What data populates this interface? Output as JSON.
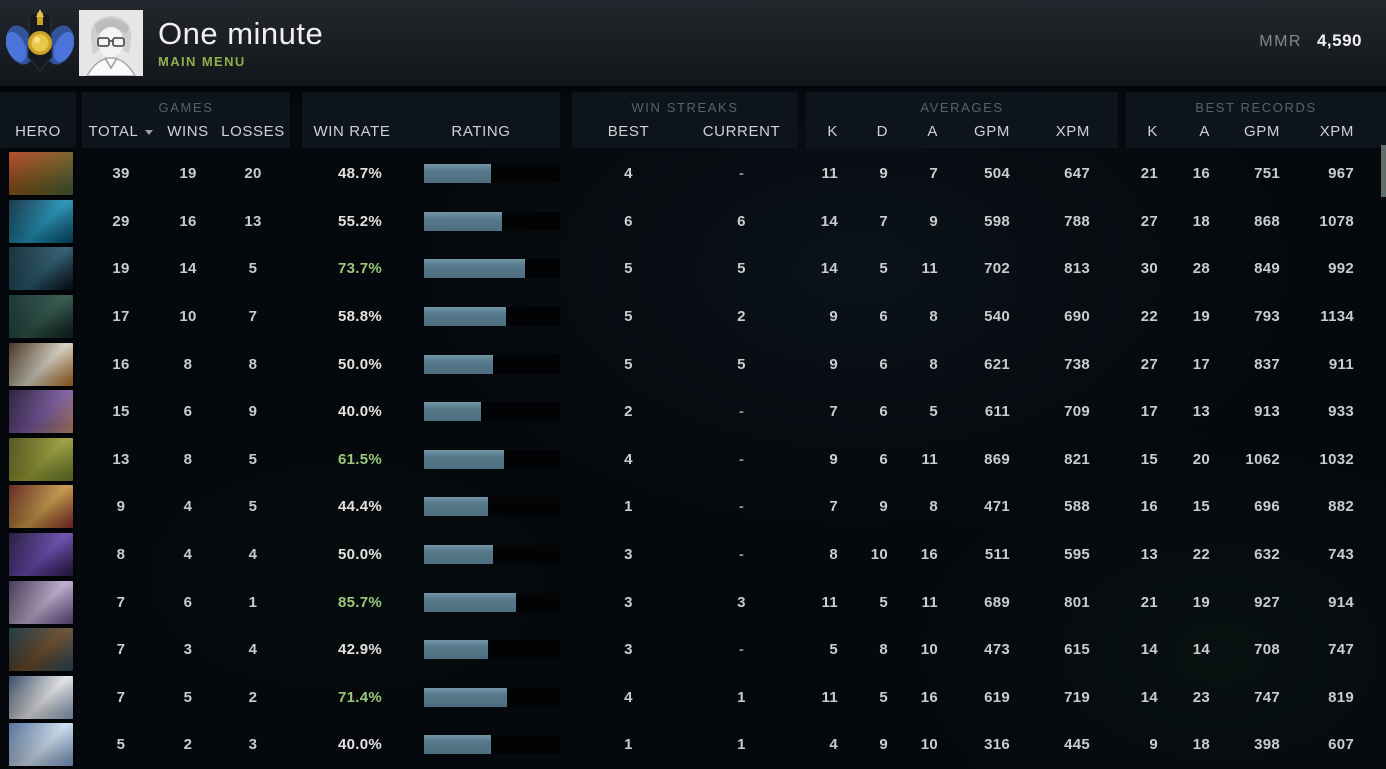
{
  "topbar": {
    "player_name": "One minute",
    "nav_label": "MAIN MENU",
    "mmr_label": "MMR",
    "mmr_value": "4,590"
  },
  "table": {
    "groups": {
      "games": "GAMES",
      "win_streaks": "WIN STREAKS",
      "averages": "AVERAGES",
      "best_records": "BEST RECORDS"
    },
    "columns": {
      "hero": "HERO",
      "total": "TOTAL",
      "wins": "WINS",
      "losses": "LOSSES",
      "win_rate": "WIN RATE",
      "rating": "RATING",
      "best": "BEST",
      "current": "CURRENT",
      "avg_k": "K",
      "avg_d": "D",
      "avg_a": "A",
      "avg_gpm": "GPM",
      "avg_xpm": "XPM",
      "rec_k": "K",
      "rec_a": "A",
      "rec_gpm": "GPM",
      "rec_xpm": "XPM"
    }
  },
  "colors": {
    "accent_green": "#8fb04c",
    "win_rate_green": "#9cc87c",
    "bar_fill": "#567a8b",
    "bar_track": "#010305",
    "panel_bg": "#0d141c"
  },
  "rows": [
    {
      "hero": "techies",
      "portrait": [
        "#b3431f",
        "#7a5a20",
        "#42603a"
      ],
      "total": "39",
      "wins": "19",
      "losses": "20",
      "win_rate": "48.7%",
      "win_rate_green": false,
      "rating_pct": 49,
      "streak_best": "4",
      "streak_current": "-",
      "avg_k": "11",
      "avg_d": "9",
      "avg_a": "7",
      "avg_gpm": "504",
      "avg_xpm": "647",
      "rec_k": "21",
      "rec_a": "16",
      "rec_gpm": "751",
      "rec_xpm": "967"
    },
    {
      "hero": "storm-spirit",
      "portrait": [
        "#0e2a3f",
        "#2293b8",
        "#0a4a66"
      ],
      "total": "29",
      "wins": "16",
      "losses": "13",
      "win_rate": "55.2%",
      "win_rate_green": false,
      "rating_pct": 57,
      "streak_best": "6",
      "streak_current": "6",
      "avg_k": "14",
      "avg_d": "7",
      "avg_a": "9",
      "avg_gpm": "598",
      "avg_xpm": "788",
      "rec_k": "27",
      "rec_a": "18",
      "rec_gpm": "868",
      "rec_xpm": "1078"
    },
    {
      "hero": "phantom-assassin",
      "portrait": [
        "#0d2430",
        "#2a5a6e",
        "#081017"
      ],
      "total": "19",
      "wins": "14",
      "losses": "5",
      "win_rate": "73.7%",
      "win_rate_green": true,
      "rating_pct": 74,
      "streak_best": "5",
      "streak_current": "5",
      "avg_k": "14",
      "avg_d": "5",
      "avg_a": "11",
      "avg_gpm": "702",
      "avg_xpm": "813",
      "rec_k": "30",
      "rec_a": "28",
      "rec_gpm": "849",
      "rec_xpm": "992"
    },
    {
      "hero": "slark",
      "portrait": [
        "#0f2a2e",
        "#2e5548",
        "#11201f"
      ],
      "total": "17",
      "wins": "10",
      "losses": "7",
      "win_rate": "58.8%",
      "win_rate_green": false,
      "rating_pct": 60,
      "streak_best": "5",
      "streak_current": "2",
      "avg_k": "9",
      "avg_d": "6",
      "avg_a": "8",
      "avg_gpm": "540",
      "avg_xpm": "690",
      "rec_k": "22",
      "rec_a": "19",
      "rec_gpm": "793",
      "rec_xpm": "1134"
    },
    {
      "hero": "juggernaut",
      "portrait": [
        "#3a2410",
        "#d8d2c4",
        "#b06a1e"
      ],
      "total": "16",
      "wins": "8",
      "losses": "8",
      "win_rate": "50.0%",
      "win_rate_green": false,
      "rating_pct": 51,
      "streak_best": "5",
      "streak_current": "5",
      "avg_k": "9",
      "avg_d": "6",
      "avg_a": "8",
      "avg_gpm": "621",
      "avg_xpm": "738",
      "rec_k": "27",
      "rec_a": "17",
      "rec_gpm": "837",
      "rec_xpm": "911"
    },
    {
      "hero": "anti-mage",
      "portrait": [
        "#1e1430",
        "#7a5aa0",
        "#c08a6a"
      ],
      "total": "15",
      "wins": "6",
      "losses": "9",
      "win_rate": "40.0%",
      "win_rate_green": false,
      "rating_pct": 42,
      "streak_best": "2",
      "streak_current": "-",
      "avg_k": "7",
      "avg_d": "6",
      "avg_a": "5",
      "avg_gpm": "611",
      "avg_xpm": "709",
      "rec_k": "17",
      "rec_a": "13",
      "rec_gpm": "913",
      "rec_xpm": "933"
    },
    {
      "hero": "alchemist",
      "portrait": [
        "#4a4a14",
        "#9aa03a",
        "#6a7a2a"
      ],
      "total": "13",
      "wins": "8",
      "losses": "5",
      "win_rate": "61.5%",
      "win_rate_green": true,
      "rating_pct": 59,
      "streak_best": "4",
      "streak_current": "-",
      "avg_k": "9",
      "avg_d": "6",
      "avg_a": "11",
      "avg_gpm": "869",
      "avg_xpm": "821",
      "rec_k": "15",
      "rec_a": "20",
      "rec_gpm": "1062",
      "rec_xpm": "1032"
    },
    {
      "hero": "legion-commander",
      "portrait": [
        "#5a1a14",
        "#c89a4a",
        "#8a2f2a"
      ],
      "total": "9",
      "wins": "4",
      "losses": "5",
      "win_rate": "44.4%",
      "win_rate_green": false,
      "rating_pct": 47,
      "streak_best": "1",
      "streak_current": "-",
      "avg_k": "7",
      "avg_d": "9",
      "avg_a": "8",
      "avg_gpm": "471",
      "avg_xpm": "588",
      "rec_k": "16",
      "rec_a": "15",
      "rec_gpm": "696",
      "rec_xpm": "882"
    },
    {
      "hero": "faceless-void",
      "portrait": [
        "#1a1030",
        "#6a4ab0",
        "#2a1a4a"
      ],
      "total": "8",
      "wins": "4",
      "losses": "4",
      "win_rate": "50.0%",
      "win_rate_green": false,
      "rating_pct": 51,
      "streak_best": "3",
      "streak_current": "-",
      "avg_k": "8",
      "avg_d": "10",
      "avg_a": "16",
      "avg_gpm": "511",
      "avg_xpm": "595",
      "rec_k": "13",
      "rec_a": "22",
      "rec_gpm": "632",
      "rec_xpm": "743"
    },
    {
      "hero": "riki",
      "portrait": [
        "#3a2a4a",
        "#c0aed0",
        "#6a4a8a"
      ],
      "total": "7",
      "wins": "6",
      "losses": "1",
      "win_rate": "85.7%",
      "win_rate_green": true,
      "rating_pct": 68,
      "streak_best": "3",
      "streak_current": "3",
      "avg_k": "11",
      "avg_d": "5",
      "avg_a": "11",
      "avg_gpm": "689",
      "avg_xpm": "801",
      "rec_k": "21",
      "rec_a": "19",
      "rec_gpm": "927",
      "rec_xpm": "914"
    },
    {
      "hero": "magnus",
      "portrait": [
        "#12303f",
        "#6a4a2a",
        "#2a4a5f"
      ],
      "total": "7",
      "wins": "3",
      "losses": "4",
      "win_rate": "42.9%",
      "win_rate_green": false,
      "rating_pct": 47,
      "streak_best": "3",
      "streak_current": "-",
      "avg_k": "5",
      "avg_d": "8",
      "avg_a": "10",
      "avg_gpm": "473",
      "avg_xpm": "615",
      "rec_k": "14",
      "rec_a": "14",
      "rec_gpm": "708",
      "rec_xpm": "747"
    },
    {
      "hero": "zeus",
      "portrait": [
        "#2a3f5f",
        "#e8e8e8",
        "#8aa0c0"
      ],
      "total": "7",
      "wins": "5",
      "losses": "2",
      "win_rate": "71.4%",
      "win_rate_green": true,
      "rating_pct": 61,
      "streak_best": "4",
      "streak_current": "1",
      "avg_k": "11",
      "avg_d": "5",
      "avg_a": "16",
      "avg_gpm": "619",
      "avg_xpm": "719",
      "rec_k": "14",
      "rec_a": "23",
      "rec_gpm": "747",
      "rec_xpm": "819"
    },
    {
      "hero": "crystal-maiden",
      "portrait": [
        "#4a6a9a",
        "#cfe0f0",
        "#7a9ac8"
      ],
      "total": "5",
      "wins": "2",
      "losses": "3",
      "win_rate": "40.0%",
      "win_rate_green": false,
      "rating_pct": 49,
      "streak_best": "1",
      "streak_current": "1",
      "avg_k": "4",
      "avg_d": "9",
      "avg_a": "10",
      "avg_gpm": "316",
      "avg_xpm": "445",
      "rec_k": "9",
      "rec_a": "18",
      "rec_gpm": "398",
      "rec_xpm": "607"
    }
  ]
}
